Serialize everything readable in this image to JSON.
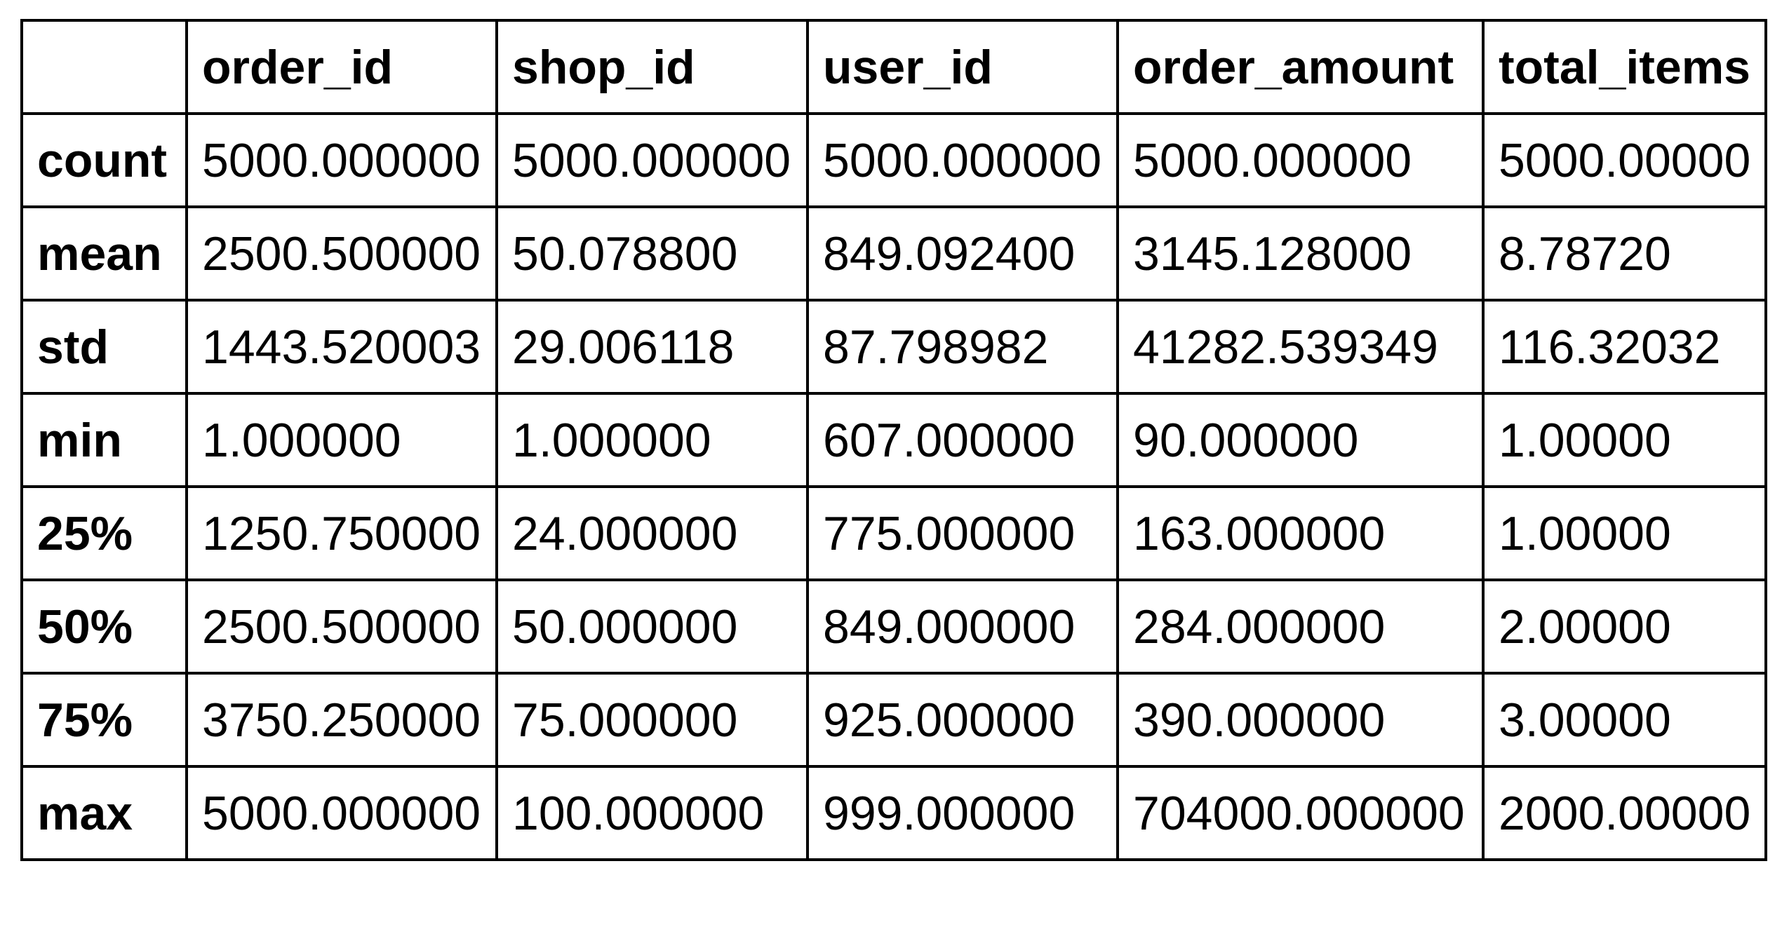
{
  "table": {
    "columns": [
      "",
      "order_id",
      "shop_id",
      "user_id",
      "order_amount",
      "total_items"
    ],
    "rows": [
      {
        "label": "count",
        "values": [
          "5000.000000",
          "5000.000000",
          "5000.000000",
          "5000.000000",
          "5000.00000"
        ]
      },
      {
        "label": "mean",
        "values": [
          "2500.500000",
          "50.078800",
          "849.092400",
          "3145.128000",
          "8.78720"
        ]
      },
      {
        "label": "std",
        "values": [
          "1443.520003",
          "29.006118",
          "87.798982",
          "41282.539349",
          "116.32032"
        ]
      },
      {
        "label": "min",
        "values": [
          "1.000000",
          "1.000000",
          "607.000000",
          "90.000000",
          "1.00000"
        ]
      },
      {
        "label": "25%",
        "values": [
          "1250.750000",
          "24.000000",
          "775.000000",
          "163.000000",
          "1.00000"
        ]
      },
      {
        "label": "50%",
        "values": [
          "2500.500000",
          "50.000000",
          "849.000000",
          "284.000000",
          "2.00000"
        ]
      },
      {
        "label": "75%",
        "values": [
          "3750.250000",
          "75.000000",
          "925.000000",
          "390.000000",
          "3.00000"
        ]
      },
      {
        "label": "max",
        "values": [
          "5000.000000",
          "100.000000",
          "999.000000",
          "704000.000000",
          "2000.00000"
        ]
      }
    ]
  }
}
